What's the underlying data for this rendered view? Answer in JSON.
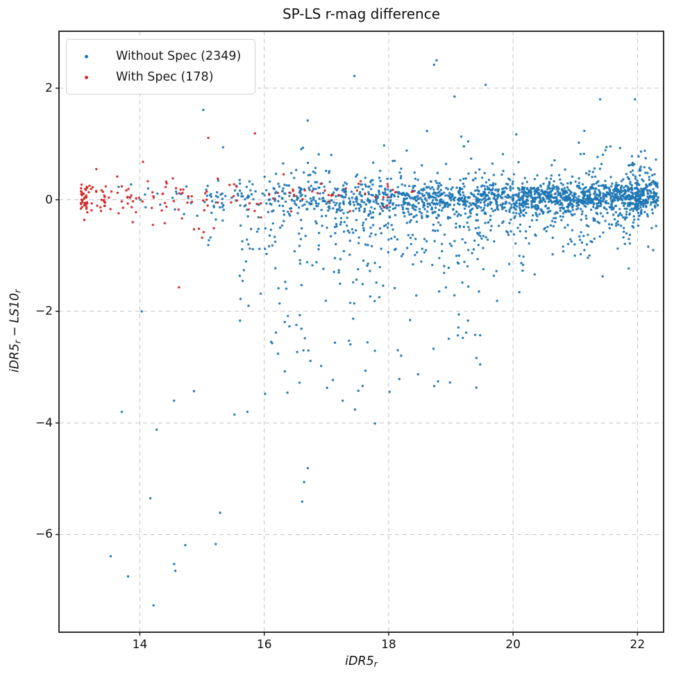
{
  "chart_data": {
    "type": "scatter",
    "title": "SP-LS r-mag difference",
    "xlabel": {
      "base": "iDR5",
      "sub": "r"
    },
    "ylabel": {
      "b1": "iDR5",
      "s1": "r",
      "op": "−",
      "b2": "LS10",
      "s2": "r"
    },
    "xlim": [
      12.7,
      22.42
    ],
    "ylim": [
      -7.75,
      3.02
    ],
    "xticks": [
      14,
      16,
      18,
      20,
      22
    ],
    "xtick_labels": [
      "14",
      "16",
      "18",
      "20",
      "22"
    ],
    "yticks": [
      2,
      0,
      -2,
      -4,
      -6
    ],
    "ytick_labels": [
      "2",
      "0",
      "−2",
      "−4",
      "−6"
    ],
    "grid": {
      "visible": true,
      "style": "dashed",
      "color": "#c3c3c3"
    },
    "frame_color": "#1a1a1a",
    "background": "#ffffff",
    "legend_position": "upper-left",
    "marker_radius": 1.7,
    "seed": 7,
    "series": [
      {
        "name": "Without Spec",
        "count": 2349,
        "legend_label": "Without Spec (2349)",
        "color": "#1f77b4",
        "clusters": [
          {
            "n": 1435,
            "x": {
              "kind": "pow",
              "min": 14.4,
              "max": 22.35,
              "p": 0.5
            },
            "y": {
              "kind": "norm",
              "mu": 0.04,
              "sigma": 0.13
            }
          },
          {
            "n": 330,
            "x": {
              "kind": "pow",
              "min": 14.6,
              "max": 22.35,
              "p": 0.5
            },
            "y": {
              "kind": "norm",
              "mu": 0.0,
              "sigma": 0.4
            }
          },
          {
            "n": 350,
            "x": {
              "kind": "uniform",
              "min": 15.6,
              "max": 21.9
            },
            "y": {
              "kind": "fan",
              "base": -0.15,
              "sigma": 0.85,
              "xref": 15.6,
              "slope": 0.1,
              "ymin": -3.7
            }
          },
          {
            "n": 45,
            "x": {
              "kind": "uniform",
              "min": 15.9,
              "max": 19.6
            },
            "y": {
              "kind": "uniform",
              "min": -3.6,
              "max": -2.0
            }
          },
          {
            "n": 55,
            "x": {
              "kind": "uniform",
              "min": 15.8,
              "max": 22.3
            },
            "y": {
              "kind": "posabs",
              "base": 0.2,
              "sigma": 0.4,
              "ymax": 1.55
            }
          },
          {
            "n": 90,
            "x": {
              "kind": "norm",
              "mu": 21.97,
              "sigma": 0.13,
              "min": 21.6,
              "max": 22.38
            },
            "y": {
              "kind": "norm",
              "mu": 0.1,
              "sigma": 0.3
            }
          },
          {
            "n": 12,
            "x": {
              "kind": "uniform",
              "min": 13.6,
              "max": 14.8
            },
            "y": {
              "kind": "norm",
              "mu": 0.1,
              "sigma": 0.25
            }
          }
        ],
        "outliers": [
          [
            13.71,
            -3.8
          ],
          [
            14.55,
            -3.6
          ],
          [
            14.87,
            -3.43
          ],
          [
            15.52,
            -3.85
          ],
          [
            15.73,
            -3.8
          ],
          [
            14.27,
            -4.12
          ],
          [
            14.17,
            -5.35
          ],
          [
            15.29,
            -5.61
          ],
          [
            14.73,
            -6.19
          ],
          [
            15.22,
            -6.17
          ],
          [
            13.53,
            -6.39
          ],
          [
            13.81,
            -6.75
          ],
          [
            14.55,
            -6.53
          ],
          [
            14.57,
            -6.65
          ],
          [
            14.22,
            -7.27
          ],
          [
            16.7,
            -4.81
          ],
          [
            16.64,
            -5.06
          ],
          [
            16.61,
            -5.41
          ],
          [
            17.01,
            -3.37
          ],
          [
            17.26,
            -3.6
          ],
          [
            17.46,
            -3.76
          ],
          [
            17.78,
            -4.01
          ],
          [
            14.03,
            -2.0
          ],
          [
            15.02,
            1.61
          ],
          [
            16.7,
            1.42
          ],
          [
            17.45,
            2.22
          ],
          [
            18.73,
            2.42
          ],
          [
            18.77,
            2.5
          ],
          [
            19.06,
            1.85
          ],
          [
            19.56,
            2.06
          ],
          [
            21.4,
            1.8
          ],
          [
            21.96,
            1.8
          ]
        ]
      },
      {
        "name": "With Spec",
        "count": 178,
        "legend_label": "With Spec (178)",
        "color": "#d62728",
        "clusters": [
          {
            "n": 150,
            "x": {
              "kind": "pow",
              "min": 13.05,
              "max": 18.4,
              "p": 2.2
            },
            "y": {
              "kind": "norm",
              "mu": 0.06,
              "sigma": 0.16
            }
          },
          {
            "n": 18,
            "x": {
              "kind": "pow",
              "min": 13.05,
              "max": 16.6,
              "p": 1.6
            },
            "y": {
              "kind": "norm",
              "mu": 0.0,
              "sigma": 0.38
            }
          }
        ],
        "outliers": [
          [
            15.1,
            1.11
          ],
          [
            15.85,
            1.19
          ],
          [
            14.63,
            -1.57
          ],
          [
            15.0,
            -0.68
          ],
          [
            14.87,
            -0.53
          ],
          [
            14.95,
            -0.52
          ],
          [
            15.19,
            -0.51
          ],
          [
            14.4,
            -0.42
          ],
          [
            13.3,
            0.55
          ],
          [
            14.05,
            0.68
          ]
        ]
      }
    ]
  }
}
